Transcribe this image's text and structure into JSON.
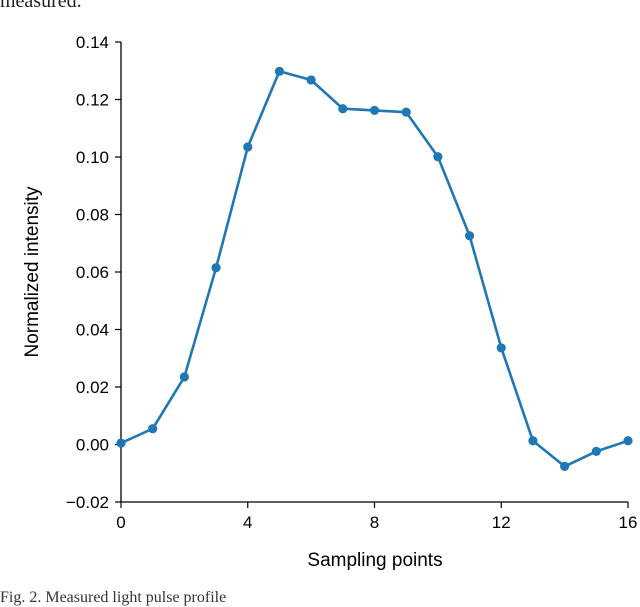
{
  "page": {
    "top_fragment": "measured.",
    "caption_fragment": "Fig. 2. Measured light pulse profile"
  },
  "chart_data": {
    "type": "line",
    "title": "",
    "xlabel": "Sampling points",
    "ylabel": "Normalized intensity",
    "xlim": [
      0,
      16
    ],
    "ylim": [
      -0.02,
      0.14
    ],
    "xticks": [
      0,
      4,
      8,
      12,
      16
    ],
    "xtick_labels": [
      "0",
      "4",
      "8",
      "12",
      "16"
    ],
    "yticks": [
      -0.02,
      0.0,
      0.02,
      0.04,
      0.06,
      0.08,
      0.1,
      0.12,
      0.14
    ],
    "ytick_labels": [
      "−0.02",
      "0.00",
      "0.02",
      "0.04",
      "0.06",
      "0.08",
      "0.10",
      "0.12",
      "0.14"
    ],
    "grid": false,
    "series": [
      {
        "color": "#1f77b4",
        "marker": "circle",
        "x": [
          0,
          1,
          2,
          3,
          4,
          5,
          6,
          7,
          8,
          9,
          10,
          11,
          12,
          13,
          14,
          15,
          16
        ],
        "y": [
          0.0005,
          0.0055,
          0.0235,
          0.0615,
          0.1035,
          0.1298,
          0.1268,
          0.1168,
          0.1162,
          0.1156,
          0.1001,
          0.0726,
          0.0336,
          0.0013,
          -0.0076,
          -0.0024,
          0.0013
        ]
      }
    ]
  }
}
